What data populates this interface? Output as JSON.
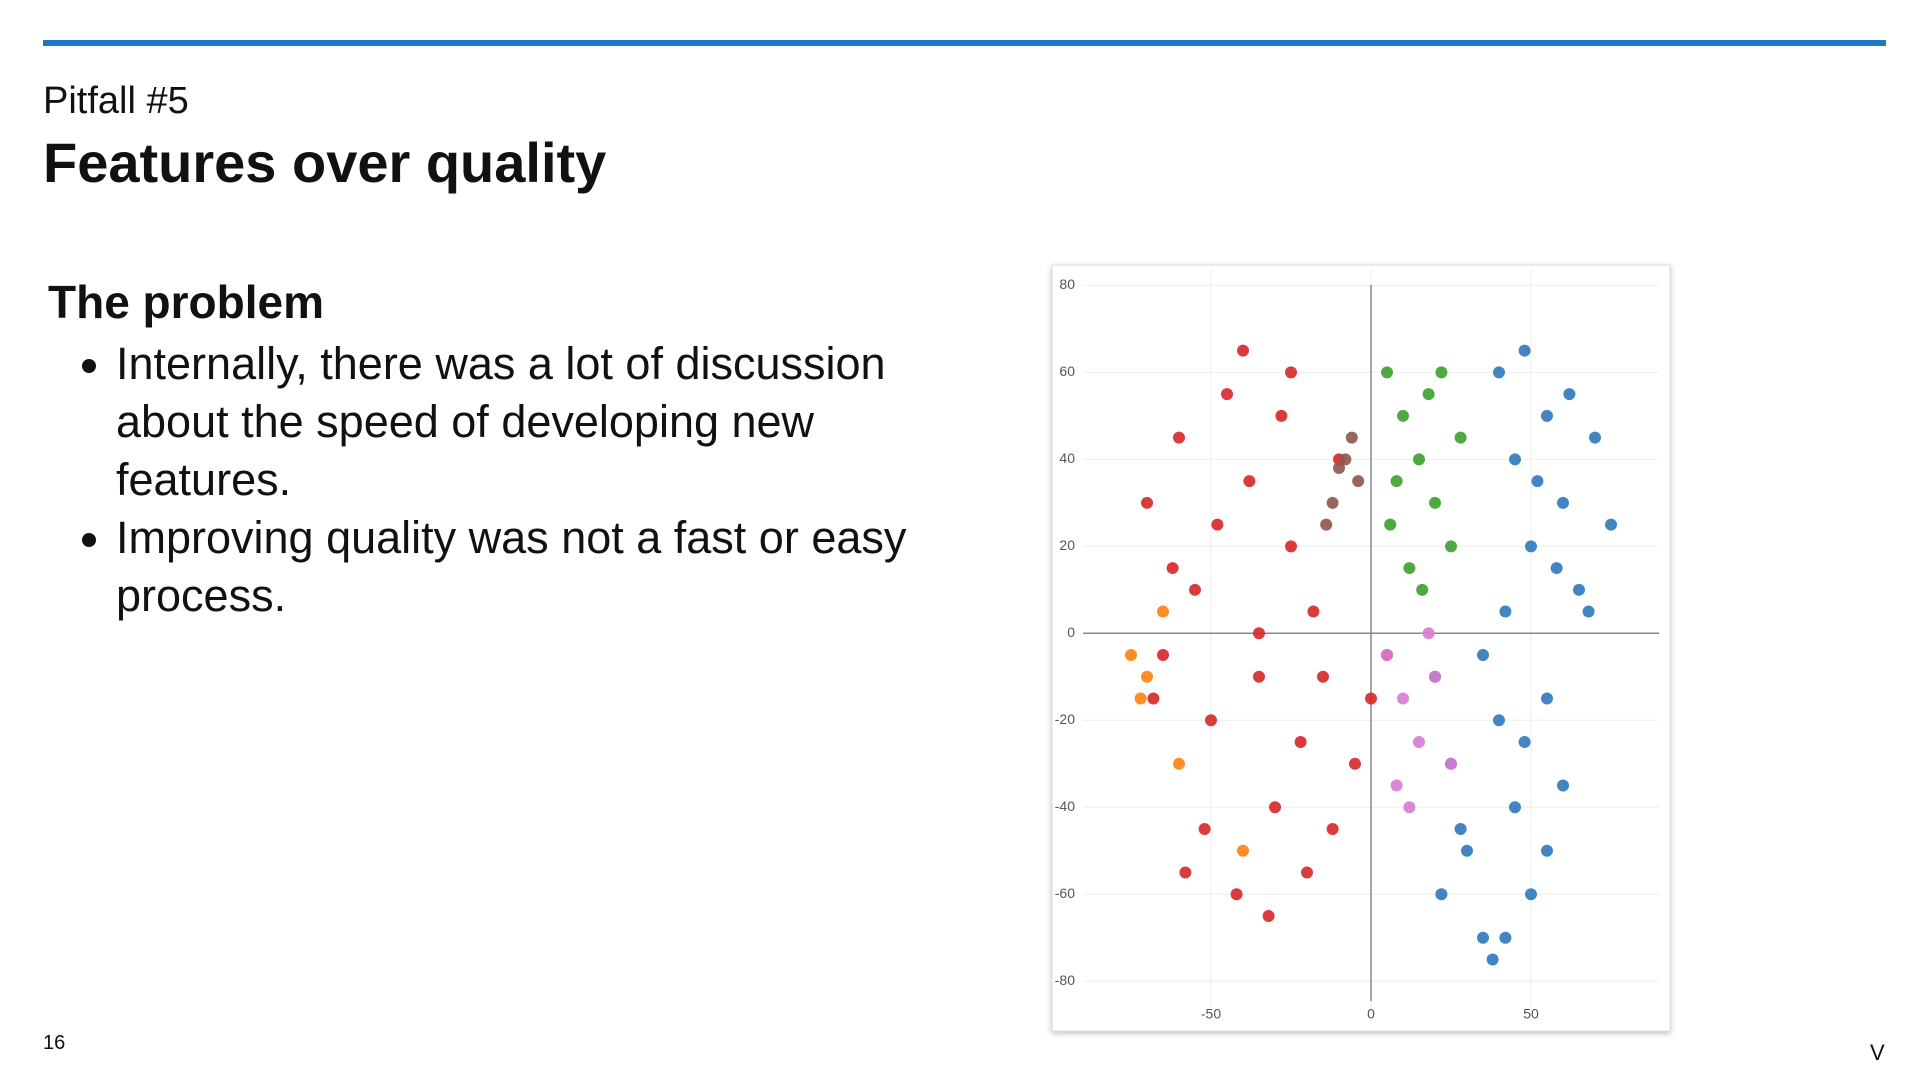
{
  "header": {
    "subtitle": "Pitfall #5",
    "title": "Features over quality"
  },
  "section": {
    "heading": "The problem",
    "bullets": [
      "Internally, there was a lot of discussion about the speed of developing new features.",
      "Improving quality was not a fast or easy process."
    ]
  },
  "page_number": "16",
  "logo": "V",
  "chart_data": {
    "type": "scatter",
    "xlim": [
      -90,
      90
    ],
    "ylim": [
      -88,
      84
    ],
    "xticks": [
      -50,
      0,
      50
    ],
    "yticks": [
      -80,
      -60,
      -40,
      -20,
      0,
      20,
      40,
      60,
      80
    ],
    "grid": true,
    "series": [
      {
        "color": "#d62728",
        "x": [
          -70,
          -65,
          -60,
          -55,
          -50,
          -45,
          -40,
          -35,
          -30,
          -25,
          -20,
          -15,
          -10,
          -5,
          0,
          5,
          -68,
          -62,
          -52,
          -42,
          -38,
          -32,
          -28,
          -22,
          -18,
          -12,
          -48,
          -58,
          -35,
          -25
        ],
        "values": [
          30,
          -5,
          45,
          10,
          -20,
          55,
          65,
          0,
          -40,
          20,
          -55,
          -10,
          40,
          -30,
          -15,
          -5,
          -15,
          15,
          -45,
          -60,
          35,
          -65,
          50,
          -25,
          5,
          -45,
          25,
          -55,
          -10,
          60
        ]
      },
      {
        "color": "#2f78bd",
        "x": [
          40,
          45,
          50,
          55,
          60,
          65,
          70,
          75,
          42,
          48,
          52,
          58,
          62,
          68,
          20,
          25,
          30,
          35,
          40,
          45,
          50,
          55,
          60,
          22,
          28,
          35,
          42,
          48,
          55,
          38
        ],
        "values": [
          60,
          40,
          20,
          50,
          30,
          10,
          45,
          25,
          5,
          65,
          35,
          15,
          55,
          5,
          -10,
          -30,
          -50,
          -70,
          -20,
          -40,
          -60,
          -15,
          -35,
          -60,
          -45,
          -5,
          -70,
          -25,
          -50,
          -75
        ]
      },
      {
        "color": "#3ca02c",
        "x": [
          5,
          10,
          15,
          20,
          25,
          8,
          18,
          28,
          12,
          22,
          6,
          16
        ],
        "values": [
          60,
          50,
          40,
          30,
          20,
          35,
          55,
          45,
          15,
          60,
          25,
          10
        ]
      },
      {
        "color": "#8c564b",
        "x": [
          -12,
          -8,
          -4,
          -14,
          -6,
          -10
        ],
        "values": [
          30,
          40,
          35,
          25,
          45,
          38
        ]
      },
      {
        "color": "#ff7f0e",
        "x": [
          -75,
          -72,
          -70,
          -65,
          -60,
          -40
        ],
        "values": [
          -5,
          -15,
          -10,
          5,
          -30,
          -50
        ]
      },
      {
        "color": "#d77ad0",
        "x": [
          5,
          10,
          15,
          20,
          25,
          8,
          18,
          12
        ],
        "values": [
          -5,
          -15,
          -25,
          -10,
          -30,
          -35,
          0,
          -40
        ]
      }
    ]
  }
}
